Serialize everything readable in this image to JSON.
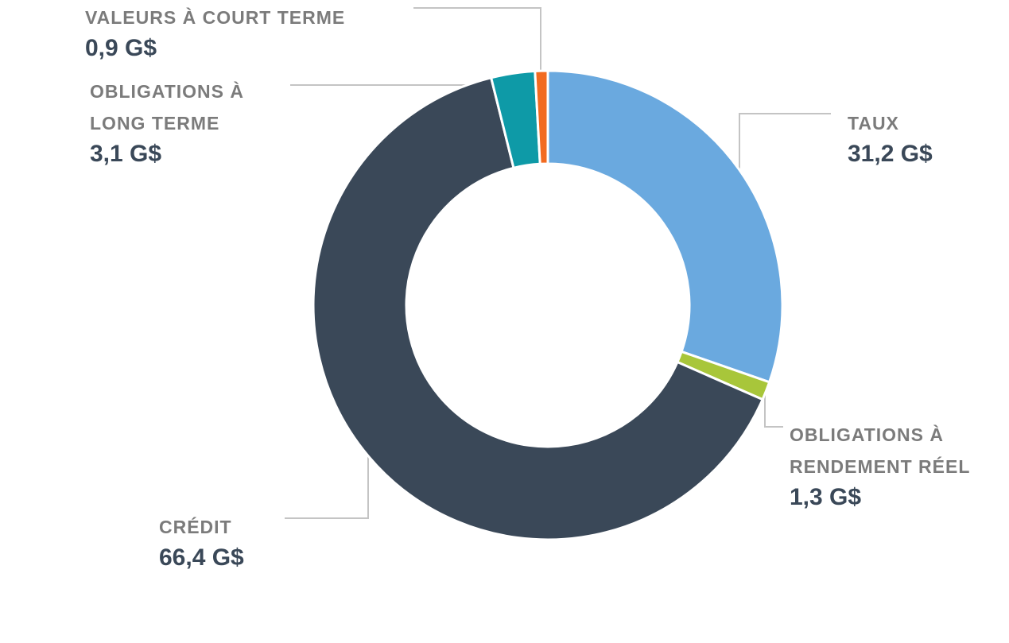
{
  "chart_data": {
    "type": "pie",
    "donut": true,
    "categories": [
      "TAUX",
      "OBLIGATIONS À RENDEMENT RÉEL",
      "CRÉDIT",
      "OBLIGATIONS À LONG TERME",
      "VALEURS À COURT TERME"
    ],
    "values": [
      31.2,
      1.3,
      66.4,
      3.1,
      0.9
    ],
    "value_labels": [
      "31,2 G$",
      "1,3 G$",
      "66,4 G$",
      "3,1 G$",
      "0,9 G$"
    ],
    "colors": [
      "#6aa9df",
      "#a8c63a",
      "#3a4858",
      "#0e9aa7",
      "#f26b21"
    ]
  }
}
